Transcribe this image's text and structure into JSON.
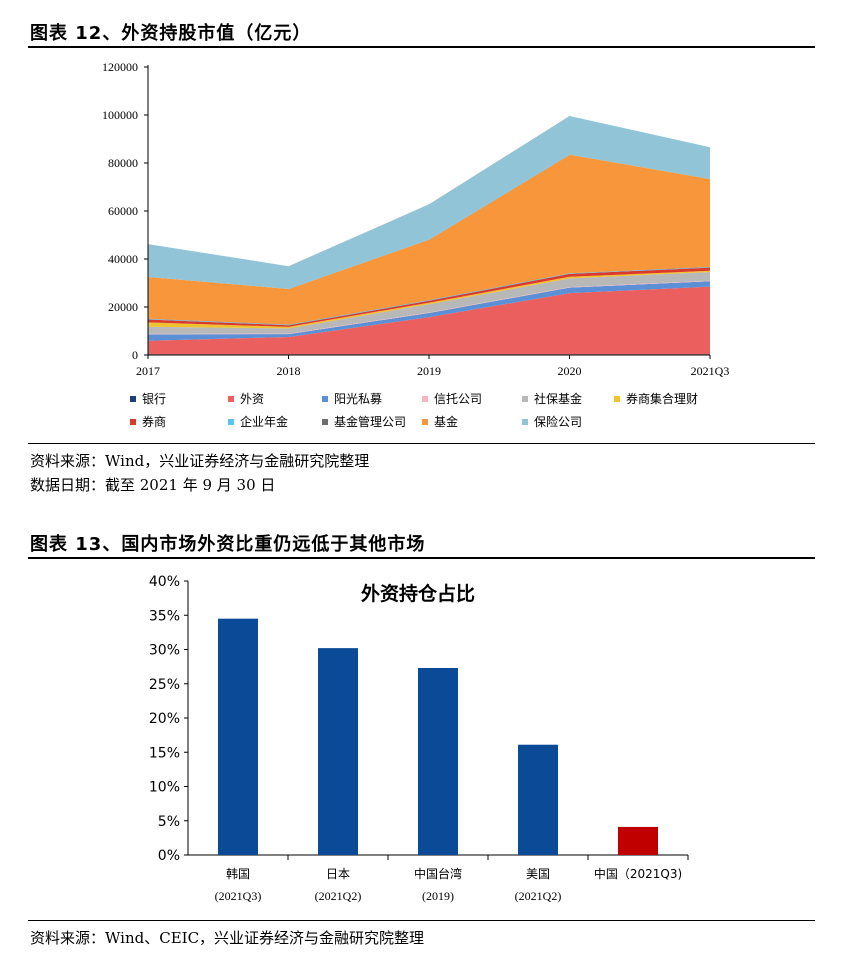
{
  "fig12": {
    "title": "图表 12、外资持股市值（亿元）",
    "source": "资料来源：Wind，兴业证券经济与金融研究院整理",
    "date": "数据日期：截至 2021 年 9 月 30 日"
  },
  "fig13": {
    "title": "图表 13、国内市场外资比重仍远低于其他市场",
    "source": "资料来源：Wind、CEIC，兴业证券经济与金融研究院整理"
  },
  "chart_data": [
    {
      "type": "area",
      "stacked": true,
      "title": "",
      "categories": [
        "2017",
        "2018",
        "2019",
        "2020",
        "2021Q3"
      ],
      "ylim": [
        0,
        120000
      ],
      "yticks": [
        0,
        20000,
        40000,
        60000,
        80000,
        100000,
        120000
      ],
      "legend_position": "bottom",
      "series": [
        {
          "name": "银行",
          "color": "#1f3e7a",
          "values": [
            300,
            300,
            300,
            300,
            300
          ]
        },
        {
          "name": "外资",
          "color": "#ec5f5f",
          "values": [
            5600,
            7200,
            15500,
            25500,
            28200
          ]
        },
        {
          "name": "阳光私募",
          "color": "#5b8fd6",
          "values": [
            2700,
            1200,
            1700,
            2300,
            2200
          ]
        },
        {
          "name": "信托公司",
          "color": "#f4b6c2",
          "values": [
            200,
            200,
            200,
            200,
            200
          ]
        },
        {
          "name": "社保基金",
          "color": "#b8b8b8",
          "values": [
            3000,
            2200,
            3500,
            3600,
            3700
          ]
        },
        {
          "name": "券商集合理财",
          "color": "#f2c12e",
          "values": [
            1800,
            600,
            600,
            700,
            500
          ]
        },
        {
          "name": "券商",
          "color": "#d93a2b",
          "values": [
            1200,
            700,
            800,
            1200,
            1300
          ]
        },
        {
          "name": "企业年金",
          "color": "#5cc3f0",
          "values": [
            200,
            200,
            200,
            200,
            200
          ]
        },
        {
          "name": "基金管理公司",
          "color": "#6e6e6e",
          "values": [
            100,
            100,
            100,
            100,
            100
          ]
        },
        {
          "name": "基金",
          "color": "#f7963a",
          "values": [
            17400,
            14800,
            25200,
            49300,
            36600
          ]
        },
        {
          "name": "保险公司",
          "color": "#92c4d8",
          "values": [
            13700,
            9500,
            14700,
            16200,
            13300
          ]
        }
      ]
    },
    {
      "type": "bar",
      "title": "外资持仓占比",
      "categories": [
        [
          "韩国",
          "(2021Q3)"
        ],
        [
          "日本",
          "(2021Q2)"
        ],
        [
          "中国台湾",
          "(2019)"
        ],
        [
          "美国",
          "(2021Q2)"
        ],
        [
          "中国（2021Q3)",
          ""
        ]
      ],
      "values": [
        34.5,
        30.2,
        27.3,
        16.1,
        4.1
      ],
      "colors": [
        "#0b4a97",
        "#0b4a97",
        "#0b4a97",
        "#0b4a97",
        "#c00000"
      ],
      "ylim": [
        0,
        40
      ],
      "yticks": [
        "0%",
        "5%",
        "10%",
        "15%",
        "20%",
        "25%",
        "30%",
        "35%",
        "40%"
      ],
      "unit": "%"
    }
  ]
}
